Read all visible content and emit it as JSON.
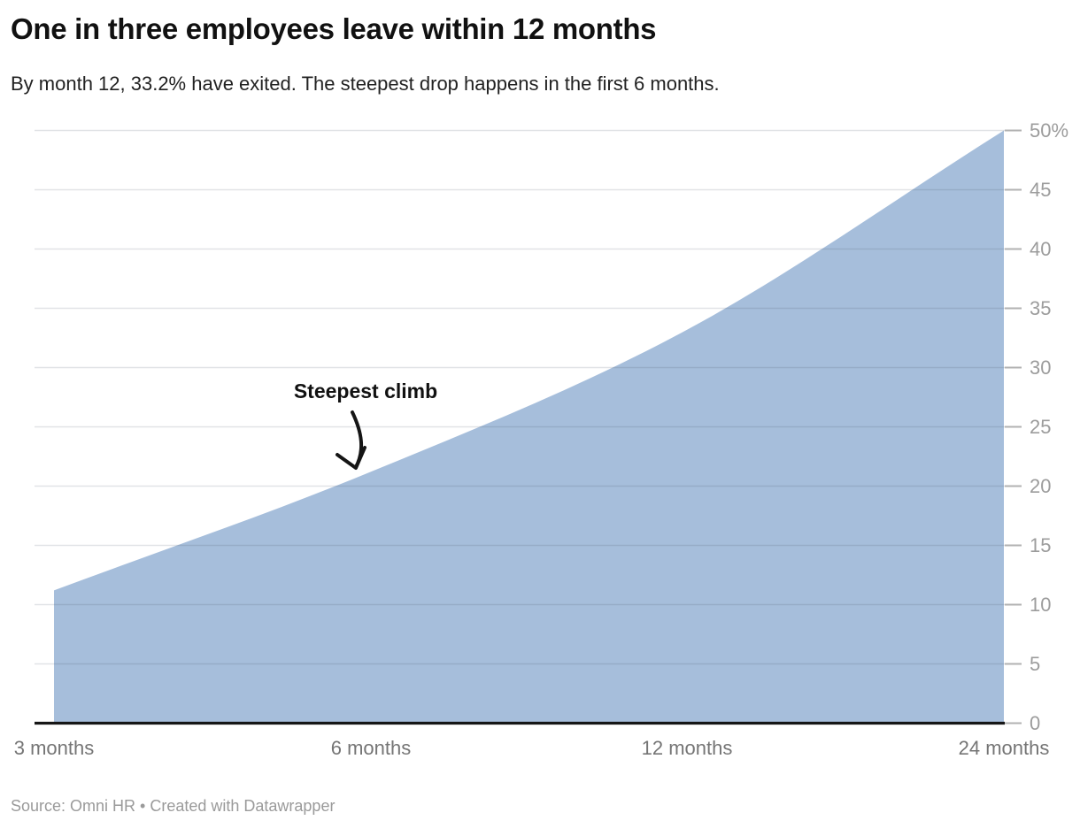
{
  "header": {
    "title": "One in three employees leave within 12 months",
    "subtitle": "By month 12, 33.2% have exited. The steepest drop happens in the first 6 months."
  },
  "annotation": {
    "label": "Steepest climb"
  },
  "footer": {
    "source": "Source: Omni HR • Created with Datawrapper"
  },
  "chart_data": {
    "type": "area",
    "title": "One in three employees leave within 12 months",
    "subtitle": "By month 12, 33.2% have exited. The steepest drop happens in the first 6 months.",
    "x_categories": [
      "3 months",
      "6 months",
      "12 months",
      "24 months"
    ],
    "x_months": [
      3,
      6,
      12,
      24
    ],
    "values": [
      11.2,
      21.2,
      33.2,
      50.0
    ],
    "unit": "%",
    "ylim": [
      0,
      50
    ],
    "y_tick_values": [
      50,
      45,
      40,
      35,
      30,
      25,
      20,
      15,
      10,
      5,
      0
    ],
    "y_tick_labels": [
      "50%",
      "45",
      "40",
      "35",
      "30",
      "25",
      "20",
      "15",
      "10",
      "5",
      "0"
    ],
    "x_scale": "log (equal spacing per doubling of months)",
    "grid": "horizontal gridlines, labels on right",
    "legend": "none",
    "curve": "smooth monotone",
    "annotation_text": "Steepest climb",
    "colors": {
      "area": "#a6bedb",
      "axis_line": "#161616",
      "grid": "#e8e8e8",
      "grid_over_area": "rgba(70,80,100,0.16)",
      "tick": "#b2b2b2",
      "y_label": "#9c9c9c",
      "x_label": "#757575",
      "annotation": "#111111",
      "arrow": "#151515"
    }
  }
}
